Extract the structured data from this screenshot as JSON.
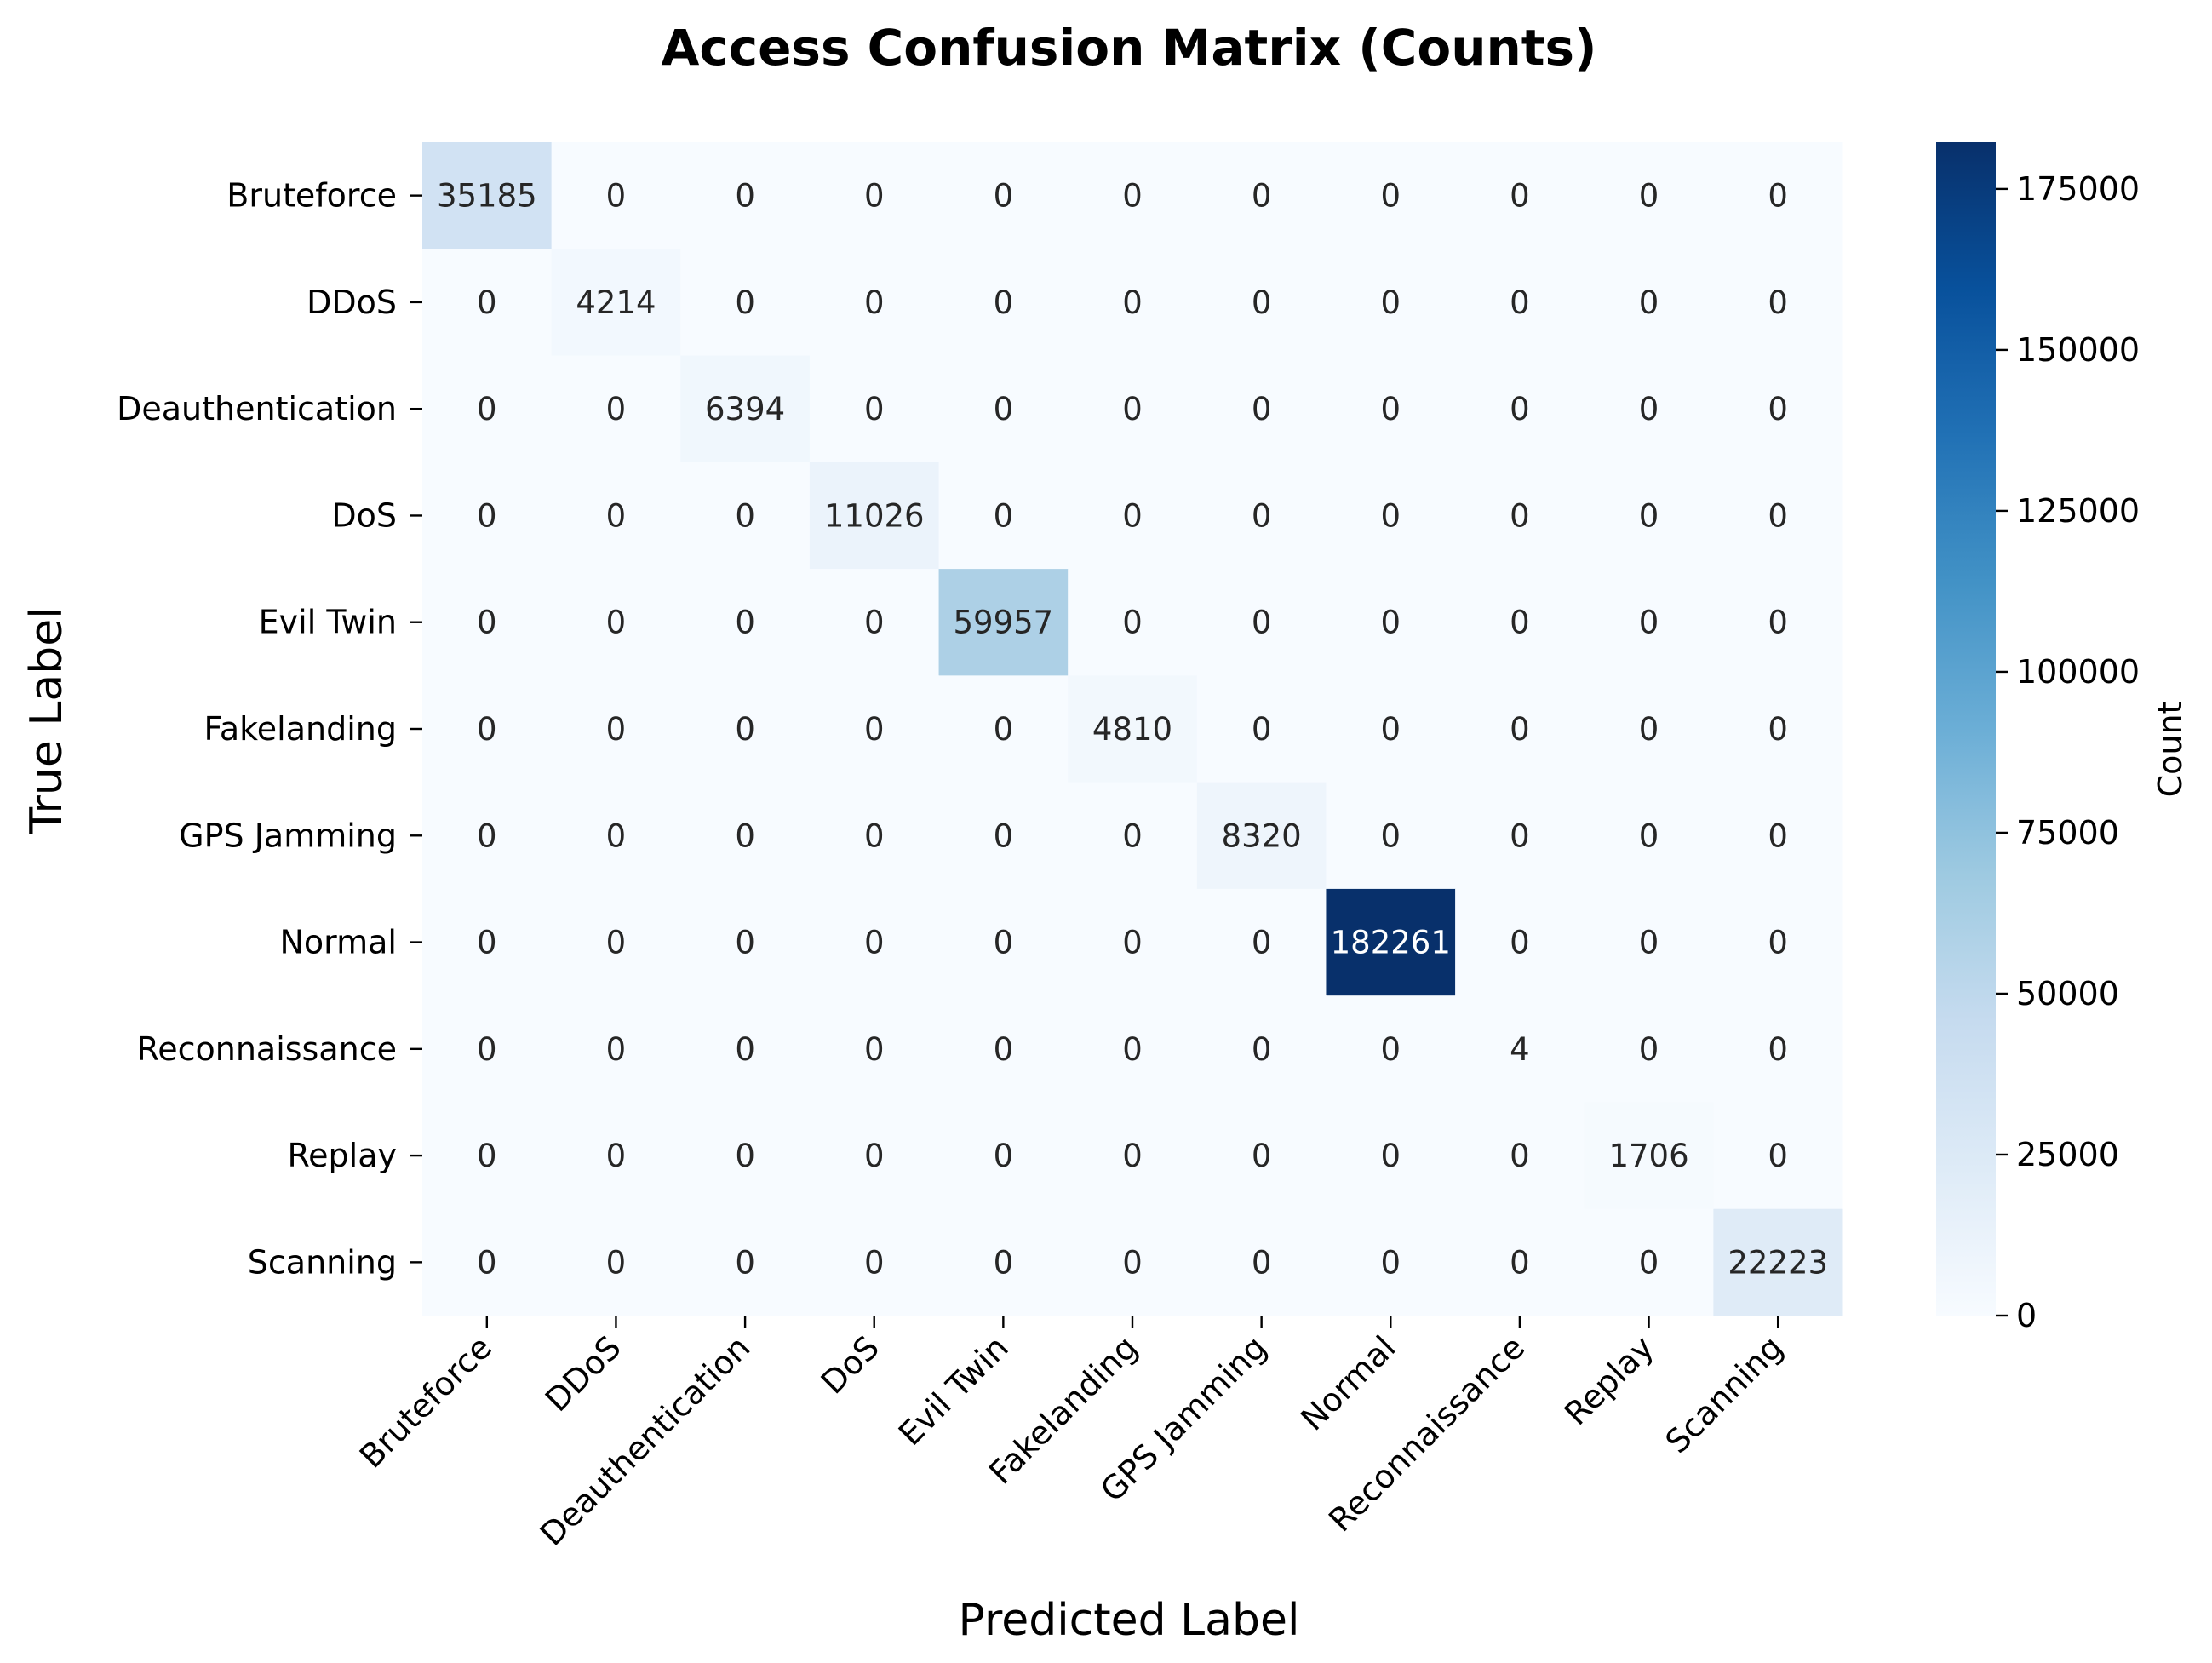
{
  "chart_data": {
    "type": "heatmap",
    "title": "Access Confusion Matrix (Counts)",
    "xlabel": "Predicted Label",
    "ylabel": "True Label",
    "labels": [
      "Bruteforce",
      "DDoS",
      "Deauthentication",
      "DoS",
      "Evil Twin",
      "Fakelanding",
      "GPS Jamming",
      "Normal",
      "Reconnaissance",
      "Replay",
      "Scanning"
    ],
    "matrix": [
      [
        35185,
        0,
        0,
        0,
        0,
        0,
        0,
        0,
        0,
        0,
        0
      ],
      [
        0,
        4214,
        0,
        0,
        0,
        0,
        0,
        0,
        0,
        0,
        0
      ],
      [
        0,
        0,
        6394,
        0,
        0,
        0,
        0,
        0,
        0,
        0,
        0
      ],
      [
        0,
        0,
        0,
        11026,
        0,
        0,
        0,
        0,
        0,
        0,
        0
      ],
      [
        0,
        0,
        0,
        0,
        59957,
        0,
        0,
        0,
        0,
        0,
        0
      ],
      [
        0,
        0,
        0,
        0,
        0,
        4810,
        0,
        0,
        0,
        0,
        0
      ],
      [
        0,
        0,
        0,
        0,
        0,
        0,
        8320,
        0,
        0,
        0,
        0
      ],
      [
        0,
        0,
        0,
        0,
        0,
        0,
        0,
        182261,
        0,
        0,
        0
      ],
      [
        0,
        0,
        0,
        0,
        0,
        0,
        0,
        0,
        4,
        0,
        0
      ],
      [
        0,
        0,
        0,
        0,
        0,
        0,
        0,
        0,
        0,
        1706,
        0
      ],
      [
        0,
        0,
        0,
        0,
        0,
        0,
        0,
        0,
        0,
        0,
        22223
      ]
    ],
    "colormap": "Blues",
    "colorbar": {
      "label": "Count",
      "range": [
        0,
        182261
      ],
      "ticks": [
        0,
        25000,
        50000,
        75000,
        100000,
        125000,
        150000,
        175000
      ]
    }
  }
}
